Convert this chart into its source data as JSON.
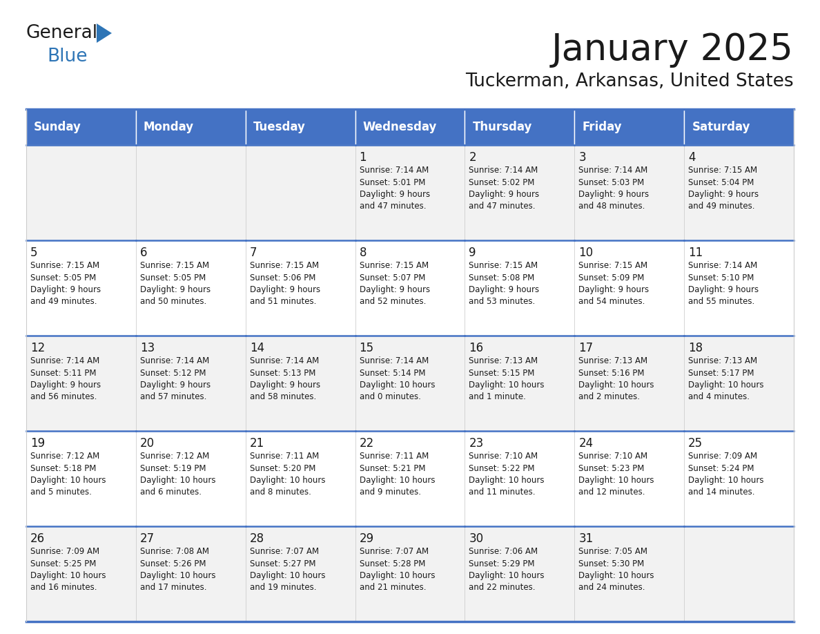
{
  "title": "January 2025",
  "subtitle": "Tuckerman, Arkansas, United States",
  "header_color": "#4472C4",
  "header_text_color": "#FFFFFF",
  "row_colors": [
    "#F2F2F2",
    "#FFFFFF"
  ],
  "text_color": "#1a1a1a",
  "border_color_strong": "#4472C4",
  "border_color_light": "#CCCCCC",
  "days_of_week": [
    "Sunday",
    "Monday",
    "Tuesday",
    "Wednesday",
    "Thursday",
    "Friday",
    "Saturday"
  ],
  "weeks": [
    [
      {
        "day": "",
        "info": ""
      },
      {
        "day": "",
        "info": ""
      },
      {
        "day": "",
        "info": ""
      },
      {
        "day": "1",
        "info": "Sunrise: 7:14 AM\nSunset: 5:01 PM\nDaylight: 9 hours\nand 47 minutes."
      },
      {
        "day": "2",
        "info": "Sunrise: 7:14 AM\nSunset: 5:02 PM\nDaylight: 9 hours\nand 47 minutes."
      },
      {
        "day": "3",
        "info": "Sunrise: 7:14 AM\nSunset: 5:03 PM\nDaylight: 9 hours\nand 48 minutes."
      },
      {
        "day": "4",
        "info": "Sunrise: 7:15 AM\nSunset: 5:04 PM\nDaylight: 9 hours\nand 49 minutes."
      }
    ],
    [
      {
        "day": "5",
        "info": "Sunrise: 7:15 AM\nSunset: 5:05 PM\nDaylight: 9 hours\nand 49 minutes."
      },
      {
        "day": "6",
        "info": "Sunrise: 7:15 AM\nSunset: 5:05 PM\nDaylight: 9 hours\nand 50 minutes."
      },
      {
        "day": "7",
        "info": "Sunrise: 7:15 AM\nSunset: 5:06 PM\nDaylight: 9 hours\nand 51 minutes."
      },
      {
        "day": "8",
        "info": "Sunrise: 7:15 AM\nSunset: 5:07 PM\nDaylight: 9 hours\nand 52 minutes."
      },
      {
        "day": "9",
        "info": "Sunrise: 7:15 AM\nSunset: 5:08 PM\nDaylight: 9 hours\nand 53 minutes."
      },
      {
        "day": "10",
        "info": "Sunrise: 7:15 AM\nSunset: 5:09 PM\nDaylight: 9 hours\nand 54 minutes."
      },
      {
        "day": "11",
        "info": "Sunrise: 7:14 AM\nSunset: 5:10 PM\nDaylight: 9 hours\nand 55 minutes."
      }
    ],
    [
      {
        "day": "12",
        "info": "Sunrise: 7:14 AM\nSunset: 5:11 PM\nDaylight: 9 hours\nand 56 minutes."
      },
      {
        "day": "13",
        "info": "Sunrise: 7:14 AM\nSunset: 5:12 PM\nDaylight: 9 hours\nand 57 minutes."
      },
      {
        "day": "14",
        "info": "Sunrise: 7:14 AM\nSunset: 5:13 PM\nDaylight: 9 hours\nand 58 minutes."
      },
      {
        "day": "15",
        "info": "Sunrise: 7:14 AM\nSunset: 5:14 PM\nDaylight: 10 hours\nand 0 minutes."
      },
      {
        "day": "16",
        "info": "Sunrise: 7:13 AM\nSunset: 5:15 PM\nDaylight: 10 hours\nand 1 minute."
      },
      {
        "day": "17",
        "info": "Sunrise: 7:13 AM\nSunset: 5:16 PM\nDaylight: 10 hours\nand 2 minutes."
      },
      {
        "day": "18",
        "info": "Sunrise: 7:13 AM\nSunset: 5:17 PM\nDaylight: 10 hours\nand 4 minutes."
      }
    ],
    [
      {
        "day": "19",
        "info": "Sunrise: 7:12 AM\nSunset: 5:18 PM\nDaylight: 10 hours\nand 5 minutes."
      },
      {
        "day": "20",
        "info": "Sunrise: 7:12 AM\nSunset: 5:19 PM\nDaylight: 10 hours\nand 6 minutes."
      },
      {
        "day": "21",
        "info": "Sunrise: 7:11 AM\nSunset: 5:20 PM\nDaylight: 10 hours\nand 8 minutes."
      },
      {
        "day": "22",
        "info": "Sunrise: 7:11 AM\nSunset: 5:21 PM\nDaylight: 10 hours\nand 9 minutes."
      },
      {
        "day": "23",
        "info": "Sunrise: 7:10 AM\nSunset: 5:22 PM\nDaylight: 10 hours\nand 11 minutes."
      },
      {
        "day": "24",
        "info": "Sunrise: 7:10 AM\nSunset: 5:23 PM\nDaylight: 10 hours\nand 12 minutes."
      },
      {
        "day": "25",
        "info": "Sunrise: 7:09 AM\nSunset: 5:24 PM\nDaylight: 10 hours\nand 14 minutes."
      }
    ],
    [
      {
        "day": "26",
        "info": "Sunrise: 7:09 AM\nSunset: 5:25 PM\nDaylight: 10 hours\nand 16 minutes."
      },
      {
        "day": "27",
        "info": "Sunrise: 7:08 AM\nSunset: 5:26 PM\nDaylight: 10 hours\nand 17 minutes."
      },
      {
        "day": "28",
        "info": "Sunrise: 7:07 AM\nSunset: 5:27 PM\nDaylight: 10 hours\nand 19 minutes."
      },
      {
        "day": "29",
        "info": "Sunrise: 7:07 AM\nSunset: 5:28 PM\nDaylight: 10 hours\nand 21 minutes."
      },
      {
        "day": "30",
        "info": "Sunrise: 7:06 AM\nSunset: 5:29 PM\nDaylight: 10 hours\nand 22 minutes."
      },
      {
        "day": "31",
        "info": "Sunrise: 7:05 AM\nSunset: 5:30 PM\nDaylight: 10 hours\nand 24 minutes."
      },
      {
        "day": "",
        "info": ""
      }
    ]
  ],
  "logo_text1": "General",
  "logo_text2": "Blue",
  "logo_color1": "#1a1a1a",
  "logo_color2": "#2E75B6",
  "logo_triangle_color": "#2E75B6",
  "fig_width": 11.88,
  "fig_height": 9.18,
  "dpi": 100
}
